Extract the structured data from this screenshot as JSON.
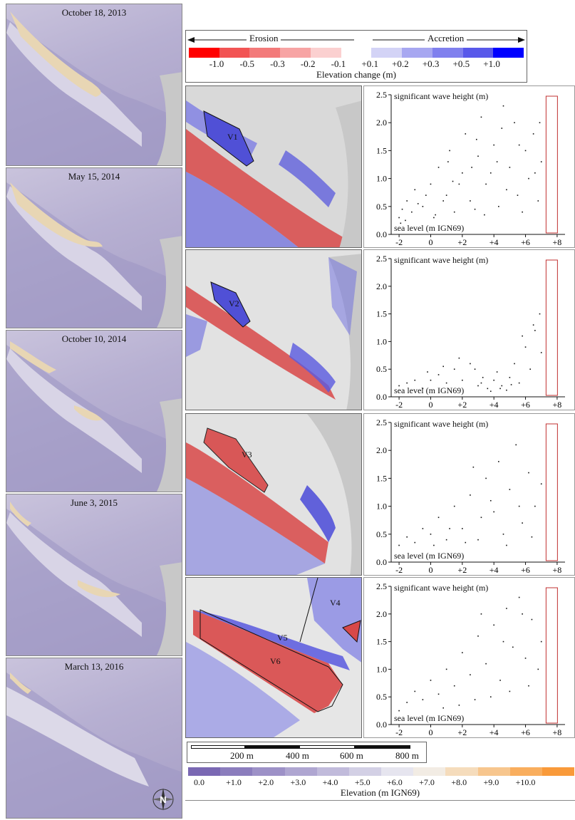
{
  "dem_panels": [
    {
      "date": "October 18, 2013"
    },
    {
      "date": "May 15, 2014"
    },
    {
      "date": "October 10, 2014"
    },
    {
      "date": "June 3, 2015"
    },
    {
      "date": "March 13, 2016"
    }
  ],
  "change_legend": {
    "erosion": "Erosion",
    "accretion": "Accretion",
    "title": "Elevation change (m)",
    "ticks": [
      "-1.0",
      "-0.5",
      "-0.3",
      "-0.2",
      "-0.1",
      "+0.1",
      "+0.2",
      "+0.3",
      "+0.5",
      "+1.0"
    ],
    "colors": [
      "#ff0000",
      "#f25454",
      "#f37a7a",
      "#f7a4a4",
      "#fbd0d0",
      "#ffffff",
      "#d3d3f6",
      "#a7a7f1",
      "#8080ee",
      "#5959ea",
      "#0000ff"
    ]
  },
  "change_maps": [
    {
      "labels": [
        "V1"
      ]
    },
    {
      "labels": [
        "V2"
      ]
    },
    {
      "labels": [
        "V3"
      ]
    },
    {
      "labels": [
        "V4",
        "V5",
        "V6"
      ]
    }
  ],
  "scale_bar": {
    "labels": [
      "200 m",
      "400 m",
      "600 m",
      "800 m"
    ]
  },
  "elevation_legend": {
    "title": "Elevation (m IGN69)",
    "ticks": [
      "0.0",
      "+1.0",
      "+2.0",
      "+3.0",
      "+4.0",
      "+5.0",
      "+6.0",
      "+7.0",
      "+8.0",
      "+9.0",
      "+10.0"
    ],
    "colors": [
      "#7a68b3",
      "#8b7dbd",
      "#9d91c7",
      "#afa6d1",
      "#c1bbdb",
      "#d3d0e5",
      "#e6e5ef",
      "#f2ece4",
      "#f5dcbc",
      "#f7c68e",
      "#f9ae5e",
      "#f99a3a"
    ]
  },
  "chart_data": [
    {
      "type": "scatter",
      "ylabel": "significant wave height (m)",
      "xlabel": "sea level (m IGN69)",
      "xlim": [
        -2.5,
        8.5
      ],
      "ylim": [
        0,
        2.5
      ],
      "xticks": [
        "-2",
        "0",
        "+2",
        "+4",
        "+6",
        "+8"
      ],
      "yticks": [
        "0.0",
        "0.5",
        "1.0",
        "1.5",
        "2.0",
        "2.5"
      ],
      "threshold_line_x": 7.3,
      "points": [
        [
          -2,
          0.3
        ],
        [
          -1.8,
          0.45
        ],
        [
          -1.5,
          0.6
        ],
        [
          -1.2,
          0.4
        ],
        [
          -1,
          0.8
        ],
        [
          -0.5,
          0.5
        ],
        [
          0,
          0.9
        ],
        [
          0.3,
          0.35
        ],
        [
          0.5,
          1.2
        ],
        [
          1,
          0.7
        ],
        [
          1.2,
          1.5
        ],
        [
          1.5,
          0.4
        ],
        [
          2,
          1.1
        ],
        [
          2.2,
          1.8
        ],
        [
          2.5,
          0.6
        ],
        [
          3,
          1.4
        ],
        [
          3.2,
          2.1
        ],
        [
          3.5,
          0.9
        ],
        [
          4,
          1.6
        ],
        [
          4.3,
          0.5
        ],
        [
          4.5,
          1.9
        ],
        [
          5,
          1.2
        ],
        [
          5.3,
          2.0
        ],
        [
          5.5,
          0.7
        ],
        [
          6,
          1.5
        ],
        [
          6.2,
          1.0
        ],
        [
          6.5,
          1.8
        ],
        [
          6.8,
          0.6
        ],
        [
          7,
          1.3
        ],
        [
          -1.6,
          0.25
        ],
        [
          -0.8,
          0.55
        ],
        [
          0.8,
          0.6
        ],
        [
          1.8,
          0.9
        ],
        [
          2.8,
          0.45
        ],
        [
          3.8,
          1.1
        ],
        [
          4.8,
          0.8
        ],
        [
          5.8,
          0.4
        ],
        [
          6.6,
          1.1
        ],
        [
          -1.9,
          0.2
        ],
        [
          0.2,
          0.3
        ],
        [
          2.6,
          1.2
        ],
        [
          4.2,
          1.3
        ],
        [
          5.6,
          1.6
        ],
        [
          3.4,
          0.35
        ],
        [
          1.4,
          0.95
        ],
        [
          -0.3,
          0.7
        ],
        [
          6.9,
          2.0
        ],
        [
          4.6,
          2.3
        ],
        [
          2.9,
          1.7
        ],
        [
          1.1,
          1.3
        ]
      ]
    },
    {
      "type": "scatter",
      "ylabel": "significant wave height (m)",
      "xlabel": "sea level (m IGN69)",
      "xlim": [
        -2.5,
        8.5
      ],
      "ylim": [
        0,
        2.5
      ],
      "xticks": [
        "-2",
        "0",
        "+2",
        "+4",
        "+6",
        "+8"
      ],
      "yticks": [
        "0.0",
        "0.5",
        "1.0",
        "1.5",
        "2.0",
        "2.5"
      ],
      "threshold_line_x": 7.3,
      "points": [
        [
          -2,
          0.2
        ],
        [
          -1.5,
          0.25
        ],
        [
          -1,
          0.3
        ],
        [
          -0.5,
          0.15
        ],
        [
          0,
          0.3
        ],
        [
          0.5,
          0.4
        ],
        [
          1,
          0.25
        ],
        [
          1.5,
          0.5
        ],
        [
          2,
          0.3
        ],
        [
          2.5,
          0.6
        ],
        [
          3,
          0.2
        ],
        [
          3.3,
          0.35
        ],
        [
          3.6,
          0.15
        ],
        [
          4,
          0.3
        ],
        [
          4.2,
          0.45
        ],
        [
          4.5,
          0.2
        ],
        [
          5,
          0.35
        ],
        [
          5.3,
          0.6
        ],
        [
          5.6,
          0.25
        ],
        [
          6,
          0.9
        ],
        [
          6.3,
          0.5
        ],
        [
          6.6,
          1.2
        ],
        [
          6.9,
          1.5
        ],
        [
          7,
          0.8
        ],
        [
          3.8,
          0.1
        ],
        [
          4.8,
          0.12
        ],
        [
          2.8,
          0.5
        ],
        [
          1.8,
          0.7
        ],
        [
          5.8,
          1.1
        ],
        [
          6.5,
          1.3
        ],
        [
          0.8,
          0.55
        ],
        [
          -0.2,
          0.45
        ],
        [
          3.2,
          0.25
        ],
        [
          4.4,
          0.15
        ],
        [
          5.1,
          0.22
        ]
      ]
    },
    {
      "type": "scatter",
      "ylabel": "significant wave height (m)",
      "xlabel": "sea level (m IGN69)",
      "xlim": [
        -2.5,
        8.5
      ],
      "ylim": [
        0,
        2.5
      ],
      "xticks": [
        "-2",
        "0",
        "+2",
        "+4",
        "+6",
        "+8"
      ],
      "yticks": [
        "0.0",
        "0.5",
        "1.0",
        "1.5",
        "2.0",
        "2.5"
      ],
      "threshold_line_x": 7.3,
      "points": [
        [
          -2,
          0.3
        ],
        [
          -1.5,
          0.45
        ],
        [
          -1,
          0.35
        ],
        [
          -0.5,
          0.6
        ],
        [
          0,
          0.5
        ],
        [
          0.5,
          0.8
        ],
        [
          1,
          0.4
        ],
        [
          1.5,
          1.0
        ],
        [
          2,
          0.6
        ],
        [
          2.5,
          1.2
        ],
        [
          3,
          0.4
        ],
        [
          3.5,
          1.5
        ],
        [
          4,
          0.9
        ],
        [
          4.3,
          1.8
        ],
        [
          4.6,
          0.5
        ],
        [
          5,
          1.3
        ],
        [
          5.4,
          2.1
        ],
        [
          5.8,
          0.7
        ],
        [
          6.2,
          1.6
        ],
        [
          6.6,
          1.0
        ],
        [
          7,
          1.4
        ],
        [
          2.2,
          0.35
        ],
        [
          3.2,
          0.8
        ],
        [
          4.8,
          0.3
        ],
        [
          5.6,
          1.0
        ],
        [
          1.2,
          0.6
        ],
        [
          0.2,
          0.3
        ],
        [
          6.4,
          0.45
        ],
        [
          3.8,
          1.1
        ],
        [
          2.7,
          1.7
        ]
      ]
    },
    {
      "type": "scatter",
      "ylabel": "significant wave height (m)",
      "xlabel": "sea level (m IGN69)",
      "xlim": [
        -2.5,
        8.5
      ],
      "ylim": [
        0,
        2.5
      ],
      "xticks": [
        "-2",
        "0",
        "+2",
        "+4",
        "+6",
        "+8"
      ],
      "yticks": [
        "0.0",
        "0.5",
        "1.0",
        "1.5",
        "2.0",
        "2.5"
      ],
      "threshold_line_x": 7.3,
      "points": [
        [
          -2,
          0.25
        ],
        [
          -1.5,
          0.4
        ],
        [
          -1,
          0.6
        ],
        [
          -0.5,
          0.45
        ],
        [
          0,
          0.8
        ],
        [
          0.5,
          0.55
        ],
        [
          1,
          1.0
        ],
        [
          1.5,
          0.7
        ],
        [
          2,
          1.3
        ],
        [
          2.5,
          0.9
        ],
        [
          3,
          1.6
        ],
        [
          3.5,
          1.1
        ],
        [
          4,
          1.8
        ],
        [
          4.4,
          0.8
        ],
        [
          4.8,
          2.1
        ],
        [
          5.2,
          1.4
        ],
        [
          5.6,
          2.3
        ],
        [
          6,
          1.2
        ],
        [
          6.4,
          1.9
        ],
        [
          6.8,
          1.0
        ],
        [
          7,
          1.5
        ],
        [
          2.8,
          0.45
        ],
        [
          3.8,
          0.5
        ],
        [
          5,
          0.6
        ],
        [
          1.8,
          0.35
        ],
        [
          0.8,
          0.3
        ],
        [
          6.2,
          0.7
        ],
        [
          4.6,
          1.5
        ],
        [
          3.2,
          2.0
        ],
        [
          5.8,
          2.0
        ]
      ]
    }
  ]
}
